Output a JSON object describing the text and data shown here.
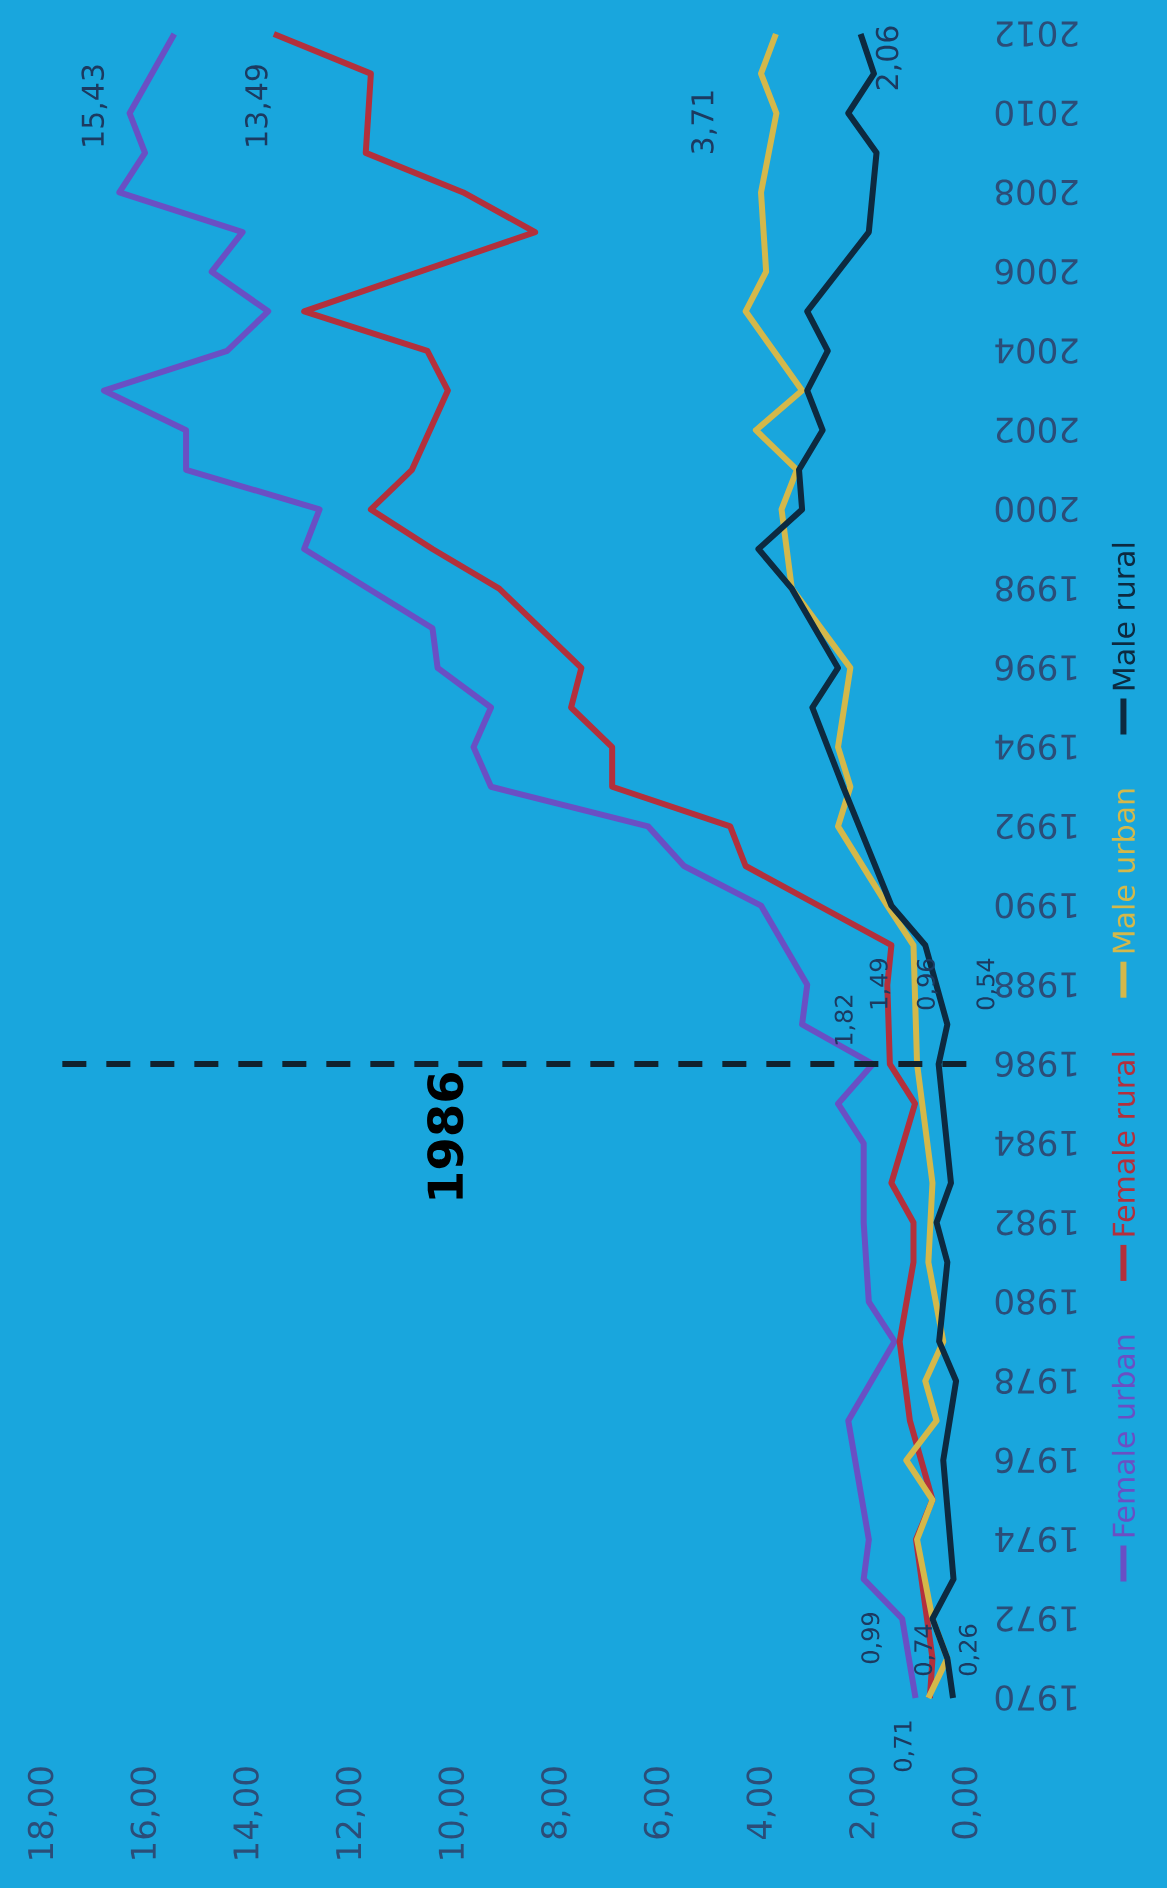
{
  "chart_data": {
    "type": "line",
    "orientation": "horizontal",
    "series": [
      {
        "name": "Female urban",
        "color": "#6a4fc4",
        "x": [
          1970,
          1972,
          1973,
          1974,
          1977,
          1979,
          1980,
          1982,
          1984,
          1985,
          1986,
          1987,
          1988,
          1990,
          1991,
          1992,
          1993,
          1994,
          1995,
          1996,
          1997,
          1999,
          2000,
          2001,
          2002,
          2003,
          2004,
          2005,
          2006,
          2007,
          2008,
          2009,
          2010,
          2012
        ],
        "values": [
          0.99,
          1.25,
          2.0,
          1.9,
          2.3,
          1.4,
          1.9,
          2.0,
          2.0,
          2.5,
          1.82,
          3.2,
          3.1,
          4.0,
          5.5,
          6.2,
          9.26,
          9.6,
          9.26,
          10.3,
          10.4,
          12.9,
          12.6,
          15.2,
          15.2,
          16.8,
          14.4,
          13.6,
          14.7,
          14.1,
          16.5,
          16.0,
          16.3,
          15.43
        ]
      },
      {
        "name": "Female rural",
        "color": "#b3303c",
        "x": [
          1970,
          1971,
          1974,
          1975,
          1977,
          1979,
          1981,
          1982,
          1983,
          1985,
          1986,
          1988,
          1989,
          1991,
          1992,
          1993,
          1994,
          1995,
          1996,
          1998,
          1999,
          2000,
          2001,
          2003,
          2004,
          2005,
          2007,
          2008,
          2009,
          2011,
          2012
        ],
        "values": [
          0.71,
          0.66,
          0.98,
          0.66,
          1.1,
          1.3,
          1.03,
          1.03,
          1.46,
          1.0,
          1.49,
          1.54,
          1.46,
          4.3,
          4.6,
          6.9,
          6.9,
          7.7,
          7.5,
          9.1,
          10.4,
          11.6,
          10.8,
          10.1,
          10.5,
          12.9,
          8.4,
          9.8,
          11.7,
          11.6,
          13.49
        ]
      },
      {
        "name": "Male urban",
        "color": "#d4b84a",
        "x": [
          1970,
          1971,
          1972,
          1974,
          1975,
          1976,
          1977,
          1978,
          1979,
          1981,
          1983,
          1986,
          1989,
          1990,
          1992,
          1993,
          1994,
          1996,
          1998,
          2000,
          2001,
          2002,
          2003,
          2005,
          2006,
          2008,
          2010,
          2011,
          2012
        ],
        "values": [
          0.74,
          0.37,
          0.66,
          0.96,
          0.66,
          1.17,
          0.58,
          0.8,
          0.45,
          0.74,
          0.66,
          0.96,
          1.03,
          1.54,
          2.5,
          2.26,
          2.5,
          2.26,
          3.4,
          3.6,
          3.3,
          4.1,
          3.2,
          4.3,
          3.9,
          4.0,
          3.7,
          4.0,
          3.71
        ]
      },
      {
        "name": "Male rural",
        "color": "#0d2a40",
        "x": [
          1970,
          1971,
          1972,
          1973,
          1976,
          1978,
          1979,
          1981,
          1982,
          1983,
          1986,
          1987,
          1989,
          1990,
          1993,
          1995,
          1996,
          1998,
          1999,
          2000,
          2001,
          2002,
          2003,
          2004,
          2005,
          2007,
          2009,
          2010,
          2011,
          2012
        ],
        "values": [
          0.26,
          0.37,
          0.66,
          0.25,
          0.45,
          0.2,
          0.53,
          0.37,
          0.58,
          0.3,
          0.54,
          0.37,
          0.8,
          1.46,
          2.4,
          3.0,
          2.5,
          3.4,
          4.05,
          3.2,
          3.26,
          2.8,
          3.1,
          2.7,
          3.1,
          1.9,
          1.75,
          2.3,
          1.8,
          2.06
        ]
      }
    ],
    "xlim": [
      18,
      0
    ],
    "xticks": [
      {
        "value": 18,
        "label": "18,00"
      },
      {
        "value": 16,
        "label": "16,00"
      },
      {
        "value": 14,
        "label": "14,00"
      },
      {
        "value": 12,
        "label": "12,00"
      },
      {
        "value": 10,
        "label": "10,00"
      },
      {
        "value": 8,
        "label": "8,00"
      },
      {
        "value": 6,
        "label": "6,00"
      },
      {
        "value": 4,
        "label": "4,00"
      },
      {
        "value": 2,
        "label": "2,00"
      },
      {
        "value": 0,
        "label": "0,00"
      }
    ],
    "ylim": [
      1970,
      2012
    ],
    "yticks": [
      1970,
      1972,
      1974,
      1976,
      1978,
      1980,
      1982,
      1984,
      1986,
      1988,
      1990,
      1992,
      1994,
      1996,
      1998,
      2000,
      2002,
      2004,
      2006,
      2008,
      2010,
      2012
    ],
    "ref_lines": [
      {
        "axis": "y",
        "value": 1986,
        "label": "1986",
        "color": "#10222e",
        "line_style": "dashed"
      }
    ],
    "annotations": [
      {
        "text": "15,43",
        "x": 15.43,
        "y": 2012
      },
      {
        "text": "13,49",
        "x": 13.49,
        "y": 2012
      },
      {
        "text": "3,71",
        "x": 3.71,
        "y": 2012
      },
      {
        "text": "2,06",
        "x": 2.06,
        "y": 2012
      },
      {
        "text": "1,82",
        "x": 1.82,
        "y": 1986
      },
      {
        "text": "1,49",
        "x": 1.49,
        "y": 1986
      },
      {
        "text": "0,96",
        "x": 0.96,
        "y": 1986
      },
      {
        "text": "0,54",
        "x": 0.54,
        "y": 1986
      },
      {
        "text": "0,99",
        "x": 0.99,
        "y": 1970
      },
      {
        "text": "0,71",
        "x": 0.71,
        "y": 1970
      },
      {
        "text": "0,74",
        "x": 0.74,
        "y": 1970
      },
      {
        "text": "0,26",
        "x": 0.26,
        "y": 1970
      }
    ],
    "legend": "right"
  }
}
